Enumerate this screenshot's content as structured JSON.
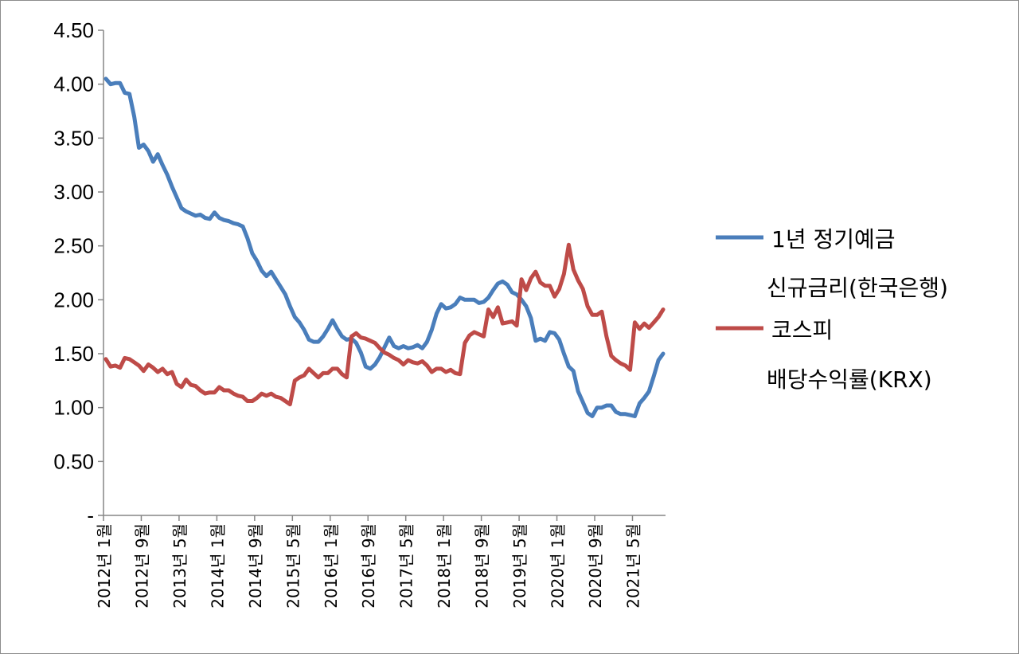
{
  "chart_data": {
    "type": "line",
    "y_tick_labels": [
      "-",
      "0.50",
      "1.00",
      "1.50",
      "2.00",
      "2.50",
      "3.00",
      "3.50",
      "4.00",
      "4.50"
    ],
    "ylim": [
      0,
      4.5
    ],
    "x_tick_labels": [
      "2012년 1월",
      "2012년 9월",
      "2013년 5월",
      "2014년 1월",
      "2014년 9월",
      "2015년 5월",
      "2016년 1월",
      "2016년 9월",
      "2017년 5월",
      "2018년 1월",
      "2018년 9월",
      "2019년 5월",
      "2020년 1월",
      "2020년 9월",
      "2021년 5월"
    ],
    "x_start": "2012-01",
    "x_end": "2021-12",
    "grid": false,
    "legend_position": "right",
    "series": [
      {
        "name_lines": [
          "1년 정기예금",
          "신규금리(한국은행)"
        ],
        "color": "#4a7ebb",
        "values": [
          4.05,
          4.0,
          4.01,
          4.01,
          3.92,
          3.91,
          3.7,
          3.41,
          3.44,
          3.38,
          3.28,
          3.35,
          3.25,
          3.16,
          3.05,
          2.95,
          2.85,
          2.82,
          2.8,
          2.78,
          2.79,
          2.76,
          2.75,
          2.81,
          2.76,
          2.74,
          2.73,
          2.71,
          2.7,
          2.68,
          2.57,
          2.43,
          2.36,
          2.27,
          2.22,
          2.26,
          2.19,
          2.12,
          2.05,
          1.94,
          1.84,
          1.79,
          1.72,
          1.63,
          1.61,
          1.61,
          1.66,
          1.73,
          1.81,
          1.73,
          1.66,
          1.63,
          1.64,
          1.6,
          1.51,
          1.38,
          1.36,
          1.4,
          1.47,
          1.56,
          1.65,
          1.57,
          1.55,
          1.57,
          1.55,
          1.56,
          1.58,
          1.55,
          1.61,
          1.72,
          1.87,
          1.96,
          1.92,
          1.93,
          1.96,
          2.02,
          2.0,
          2.0,
          2.0,
          1.97,
          1.98,
          2.02,
          2.09,
          2.15,
          2.17,
          2.14,
          2.07,
          2.05,
          2.0,
          1.94,
          1.83,
          1.62,
          1.64,
          1.62,
          1.7,
          1.69,
          1.63,
          1.5,
          1.38,
          1.34,
          1.15,
          1.05,
          0.95,
          0.92,
          1.0,
          1.0,
          1.02,
          1.02,
          0.96,
          0.94,
          0.94,
          0.93,
          0.92,
          1.04,
          1.09,
          1.15,
          1.29,
          1.44,
          1.5
        ]
      },
      {
        "name_lines": [
          "코스피",
          "배당수익률(KRX)"
        ],
        "color": "#be4b48",
        "values": [
          1.45,
          1.38,
          1.39,
          1.37,
          1.46,
          1.45,
          1.42,
          1.39,
          1.34,
          1.4,
          1.37,
          1.33,
          1.36,
          1.31,
          1.33,
          1.22,
          1.19,
          1.26,
          1.21,
          1.2,
          1.16,
          1.13,
          1.14,
          1.14,
          1.19,
          1.16,
          1.16,
          1.13,
          1.11,
          1.1,
          1.06,
          1.06,
          1.09,
          1.13,
          1.11,
          1.13,
          1.1,
          1.09,
          1.06,
          1.03,
          1.25,
          1.28,
          1.3,
          1.36,
          1.32,
          1.28,
          1.32,
          1.32,
          1.36,
          1.36,
          1.31,
          1.28,
          1.66,
          1.69,
          1.65,
          1.64,
          1.62,
          1.6,
          1.55,
          1.51,
          1.49,
          1.46,
          1.44,
          1.4,
          1.44,
          1.42,
          1.41,
          1.43,
          1.39,
          1.33,
          1.36,
          1.36,
          1.33,
          1.35,
          1.32,
          1.31,
          1.6,
          1.67,
          1.7,
          1.68,
          1.66,
          1.91,
          1.84,
          1.93,
          1.78,
          1.79,
          1.8,
          1.76,
          2.19,
          2.09,
          2.2,
          2.26,
          2.16,
          2.13,
          2.13,
          2.03,
          2.1,
          2.24,
          2.51,
          2.28,
          2.18,
          2.1,
          1.94,
          1.86,
          1.86,
          1.89,
          1.66,
          1.48,
          1.44,
          1.41,
          1.39,
          1.35,
          1.79,
          1.73,
          1.78,
          1.74,
          1.79,
          1.84,
          1.91
        ]
      }
    ]
  }
}
